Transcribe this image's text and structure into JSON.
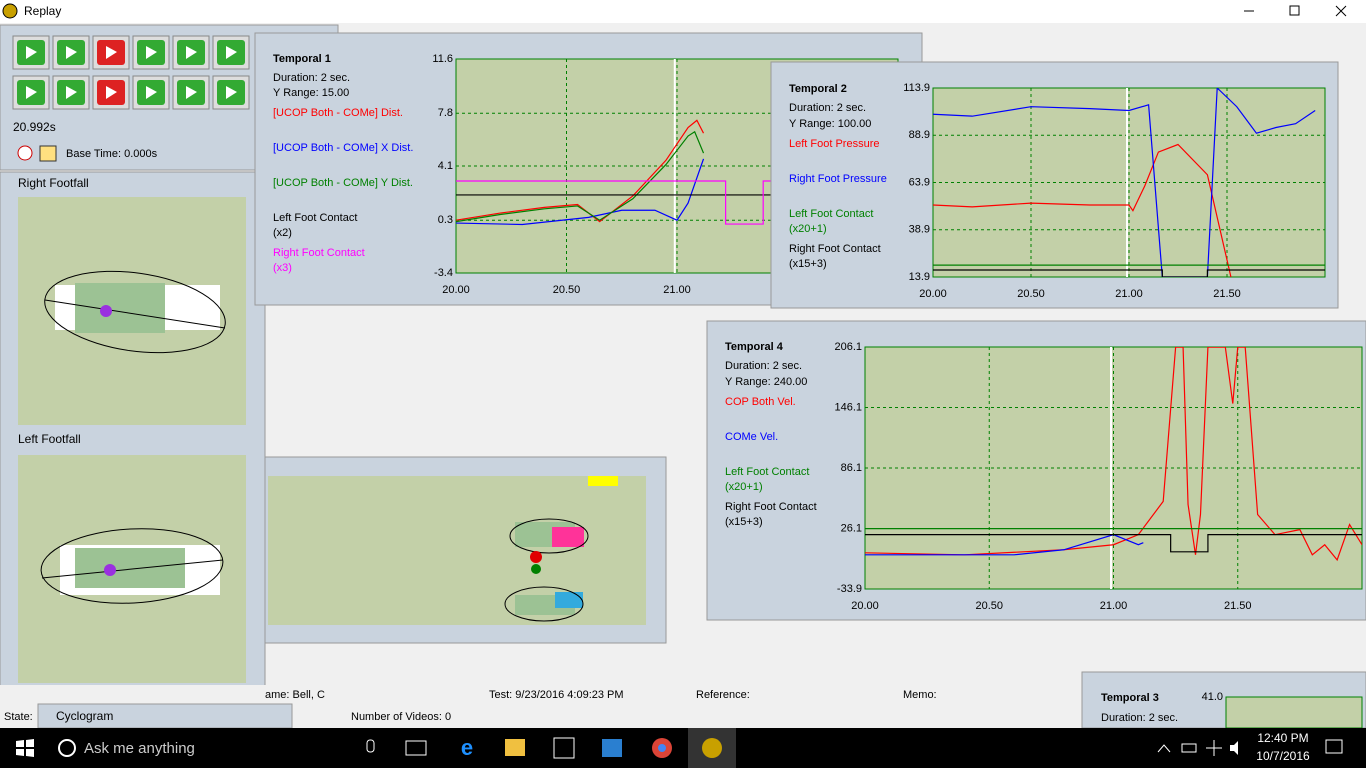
{
  "window": {
    "title": "Replay"
  },
  "controls": {
    "time": "20.992s",
    "base_time": "Base Time: 0.000s"
  },
  "footfalls": {
    "right": "Right Footfall",
    "left": "Left Footfall"
  },
  "temporal_panels": [
    {
      "title": "Temporal 1",
      "duration": "Duration: 2 sec.",
      "y_range": "Y Range: 15.00",
      "ylim": [
        -3.4,
        11.6
      ],
      "yticks": [
        11.6,
        7.8,
        4.1,
        0.3,
        -3.4
      ],
      "xlim": [
        20,
        22
      ],
      "xticks": [
        {
          "value": 20,
          "label": "20.00"
        },
        {
          "value": 20.5,
          "label": "20.50"
        },
        {
          "value": 21,
          "label": "21.00"
        }
      ],
      "cursor": 20.99,
      "series": [
        {
          "name": "[UCOP Both - COMe] Dist.",
          "color": "#ff0000",
          "x": [
            20,
            20.2,
            20.4,
            20.55,
            20.65,
            20.8,
            20.95,
            21.05,
            21.09,
            21.12
          ],
          "values": [
            0.3,
            0.8,
            1.2,
            1.4,
            0.2,
            2.0,
            4.5,
            6.8,
            7.3,
            6.4
          ]
        },
        {
          "name": "[UCOP Both - COMe] X Dist.",
          "color": "#0000ff",
          "x": [
            20,
            20.3,
            20.6,
            20.75,
            20.9,
            21.0,
            21.05,
            21.12
          ],
          "values": [
            0.1,
            0.0,
            0.5,
            1.0,
            1.0,
            0.3,
            1.5,
            4.6
          ]
        },
        {
          "name": "[UCOP Both - COMe] Y Dist.",
          "color": "#008000",
          "x": [
            20,
            20.2,
            20.4,
            20.55,
            20.65,
            20.8,
            20.95,
            21.05,
            21.08,
            21.12
          ],
          "values": [
            0.2,
            0.7,
            1.1,
            1.3,
            0.3,
            1.8,
            4.2,
            6.2,
            6.5,
            5.0
          ]
        },
        {
          "name": "Left Foot Contact",
          "scale": "(x2)",
          "color": "#000000",
          "x": [
            20,
            22
          ],
          "values": [
            2.07,
            2.07
          ]
        },
        {
          "name": "Right Foot Contact",
          "scale": "(x3)",
          "color": "#ff00ff",
          "x": [
            20,
            21.22,
            21.22,
            21.39,
            21.39,
            22
          ],
          "values": [
            3.05,
            3.05,
            0.03,
            0.03,
            3.05,
            3.05
          ]
        }
      ]
    },
    {
      "title": "Temporal 2",
      "duration": "Duration: 2 sec.",
      "y_range": "Y Range: 100.00",
      "ylim": [
        13.9,
        113.9
      ],
      "yticks": [
        113.9,
        88.9,
        63.9,
        38.9,
        13.9
      ],
      "xlim": [
        20,
        22
      ],
      "xticks": [
        {
          "value": 20,
          "label": "20.00"
        },
        {
          "value": 20.5,
          "label": "20.50"
        },
        {
          "value": 21,
          "label": "21.00"
        },
        {
          "value": 21.5,
          "label": "21.50"
        }
      ],
      "cursor": 20.99,
      "series": [
        {
          "name": "Left Foot Pressure",
          "color": "#ff0000",
          "x": [
            20,
            20.2,
            20.5,
            20.8,
            21.0,
            21.02,
            21.08,
            21.15,
            21.25,
            21.4,
            21.52
          ],
          "values": [
            52,
            51,
            53,
            52,
            52,
            49,
            62,
            80,
            84,
            68,
            13.9
          ]
        },
        {
          "name": "Right Foot Pressure",
          "color": "#0000ff",
          "x": [
            20,
            20.2,
            20.5,
            20.8,
            21.0,
            21.1,
            21.17,
            21.4,
            21.45,
            21.55,
            21.65,
            21.75,
            21.85,
            21.95
          ],
          "values": [
            100,
            99,
            104,
            103,
            102,
            105,
            13.9,
            13.9,
            113.9,
            104,
            90,
            93,
            95,
            102
          ]
        },
        {
          "name": "Left Foot Contact",
          "scale": "(x20+1)",
          "color": "#008000",
          "x": [
            20,
            22
          ],
          "values": [
            20.2,
            20.2
          ]
        },
        {
          "name": "Right Foot Contact",
          "scale": "(x15+3)",
          "color": "#000000",
          "x": [
            20,
            21.17,
            21.17,
            21.4,
            21.4,
            22
          ],
          "values": [
            17.6,
            17.6,
            13.9,
            13.9,
            17.6,
            17.6
          ]
        }
      ]
    },
    {
      "title": "Temporal 4",
      "duration": "Duration: 2 sec.",
      "y_range": "Y Range: 240.00",
      "ylim": [
        -33.9,
        206.1
      ],
      "yticks": [
        206.1,
        146.1,
        86.1,
        26.1,
        -33.9
      ],
      "xlim": [
        20,
        22
      ],
      "xticks": [
        {
          "value": 20,
          "label": "20.00"
        },
        {
          "value": 20.5,
          "label": "20.50"
        },
        {
          "value": 21,
          "label": "21.00"
        },
        {
          "value": 21.5,
          "label": "21.50"
        }
      ],
      "cursor": 20.99,
      "series": [
        {
          "name": "COP Both Vel.",
          "color": "#ff0000",
          "x": [
            20,
            20.4,
            20.8,
            21.0,
            21.1,
            21.2,
            21.25,
            21.28,
            21.3,
            21.33,
            21.35,
            21.38,
            21.45,
            21.48,
            21.5,
            21.53,
            21.58,
            21.65,
            21.75,
            21.8,
            21.85,
            21.9,
            21.95,
            22
          ],
          "values": [
            2,
            0,
            5,
            10,
            20,
            53,
            206,
            206,
            50,
            0,
            40,
            206,
            206,
            150,
            206,
            206,
            40,
            20,
            25,
            0,
            10,
            -5,
            30,
            10
          ]
        },
        {
          "name": "COMe Vel.",
          "color": "#0000ff",
          "x": [
            20,
            20.6,
            20.8,
            21.0,
            21.1,
            21.12
          ],
          "values": [
            0,
            0,
            5,
            20,
            10,
            12
          ]
        },
        {
          "name": "Left Foot Contact",
          "scale": "(x20+1)",
          "color": "#008000",
          "x": [
            20,
            22
          ],
          "values": [
            26,
            26
          ]
        },
        {
          "name": "Right Foot Contact",
          "scale": "(x15+3)",
          "color": "#000000",
          "x": [
            20,
            21.23,
            21.23,
            21.38,
            21.38,
            22
          ],
          "values": [
            20,
            20,
            3,
            3,
            20,
            20
          ]
        }
      ]
    },
    {
      "title": "Temporal 3",
      "duration": "Duration: 2 sec.",
      "ylim": [
        0,
        41
      ],
      "yticks": [
        {
          "value": 41,
          "label": "41.0"
        }
      ],
      "xlim": [
        20,
        22
      ],
      "xticks": [],
      "series": []
    }
  ],
  "status": {
    "name": "ame: Bell, C",
    "test": "Test: 9/23/2016 4:09:23 PM",
    "reference": "Reference:",
    "memo": "Memo:",
    "state": "State:",
    "tab": "Cyclogram",
    "videos": "Number of Videos: 0"
  },
  "taskbar": {
    "search": "Ask me anything",
    "time": "12:40 PM",
    "date": "10/7/2016"
  }
}
